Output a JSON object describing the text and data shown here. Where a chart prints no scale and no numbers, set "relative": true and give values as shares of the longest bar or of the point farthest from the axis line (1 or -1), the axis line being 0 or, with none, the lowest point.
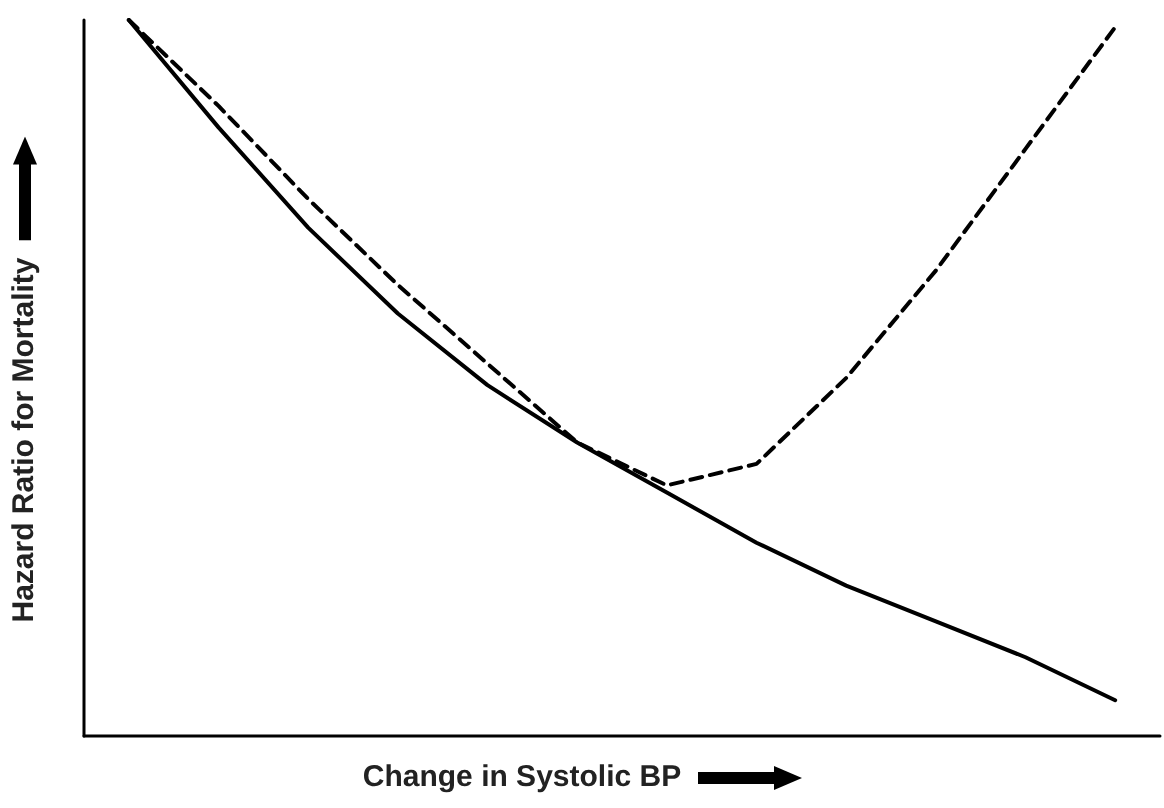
{
  "chart_data": {
    "type": "line",
    "xlabel": "Change in Systolic BP",
    "ylabel": "Hazard Ratio for Mortality",
    "relative": true,
    "marker": "none",
    "categories": [
      null,
      null,
      null,
      null,
      null,
      null,
      null,
      null,
      null,
      null,
      null,
      null
    ],
    "series": [
      {
        "color": "#000000",
        "line_style": "solid",
        "values": [
          1,
          0.85,
          0.71,
          0.59,
          0.49,
          0.41,
          0.34,
          0.27,
          0.21,
          0.16,
          0.11,
          0.05
        ]
      },
      {
        "color": "#000000",
        "line_style": "dashed",
        "values": [
          1,
          0.88,
          0.75,
          0.63,
          0.52,
          0.41,
          0.35,
          0.38,
          0.5,
          0.65,
          0.82,
          0.99
        ]
      }
    ]
  }
}
